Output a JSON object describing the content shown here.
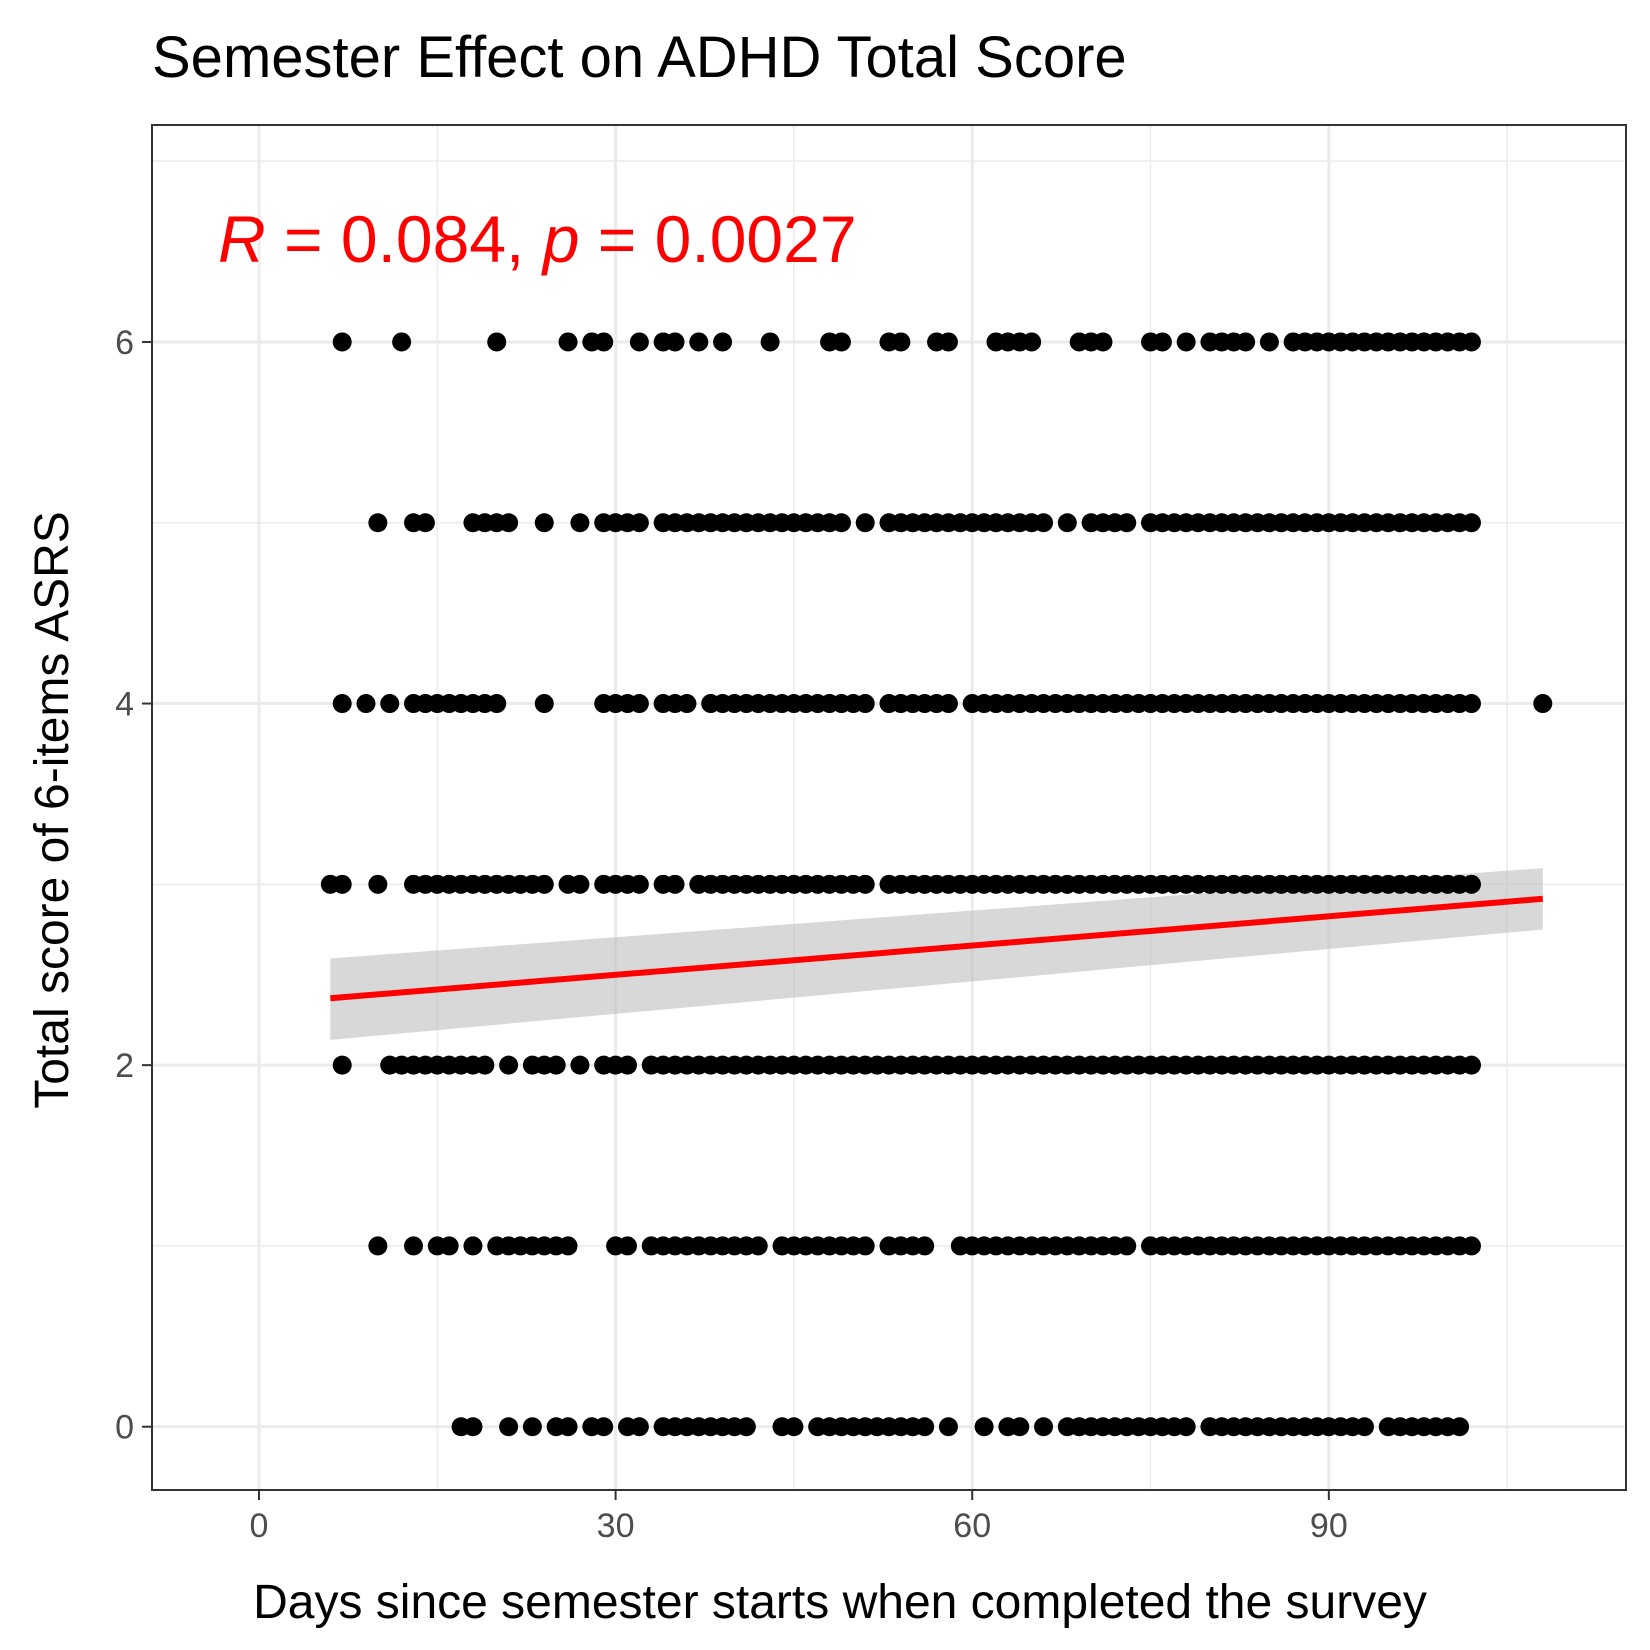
{
  "chart_data": {
    "type": "scatter",
    "title": "Semester Effect on ADHD Total Score",
    "xlabel": "Days since semester starts when completed the survey",
    "ylabel": "Total score of 6-items ASRS",
    "xlim": [
      -9,
      115
    ],
    "ylim": [
      -0.35,
      7.2
    ],
    "x_ticks": [
      0,
      30,
      60,
      90
    ],
    "x_minor_ticks": [
      15,
      45,
      75,
      105
    ],
    "y_ticks": [
      0,
      2,
      4,
      6
    ],
    "y_minor_ticks": [
      1,
      3,
      5,
      7
    ],
    "grid": true,
    "annotation": {
      "r_symbol": "R",
      "r_text": " = 0.084, ",
      "p_symbol": "p",
      "p_text": " = 0.0027",
      "color": "#ff0000"
    },
    "point_color": "#000000",
    "line_color": "#ff0000",
    "band_color": "#bebebe",
    "regression": {
      "x": [
        6,
        108
      ],
      "y": [
        2.37,
        2.92
      ],
      "ci_lower": [
        2.14,
        2.75
      ],
      "ci_upper": [
        2.59,
        3.09
      ]
    },
    "points": [
      {
        "y": 6,
        "x": [
          7,
          12,
          20,
          26,
          28,
          29,
          32,
          34,
          35,
          37,
          39,
          43,
          48,
          49,
          53,
          54,
          57,
          58,
          62,
          63,
          64,
          65,
          69,
          70,
          71,
          75,
          76,
          78,
          80,
          81,
          82,
          83,
          85,
          87,
          88,
          89,
          90,
          91,
          92,
          93,
          94,
          95,
          96,
          97,
          98,
          99,
          100,
          101,
          102
        ]
      },
      {
        "y": 5,
        "x": [
          10,
          13,
          14,
          18,
          19,
          20,
          21,
          24,
          27,
          29,
          30,
          31,
          32,
          34,
          35,
          36,
          37,
          38,
          39,
          40,
          41,
          42,
          43,
          44,
          45,
          46,
          47,
          48,
          49,
          51,
          53,
          54,
          55,
          56,
          57,
          58,
          59,
          60,
          61,
          62,
          63,
          64,
          65,
          66,
          68,
          70,
          71,
          72,
          73,
          75,
          76,
          77,
          78,
          79,
          80,
          81,
          82,
          83,
          84,
          85,
          86,
          87,
          88,
          89,
          90,
          91,
          92,
          93,
          94,
          95,
          96,
          97,
          98,
          99,
          100,
          101,
          102
        ]
      },
      {
        "y": 4,
        "x": [
          7,
          9,
          11,
          13,
          14,
          15,
          16,
          17,
          18,
          19,
          20,
          24,
          29,
          30,
          31,
          32,
          34,
          35,
          36,
          38,
          39,
          40,
          41,
          42,
          43,
          44,
          45,
          46,
          47,
          48,
          49,
          50,
          51,
          53,
          54,
          55,
          56,
          57,
          58,
          60,
          61,
          62,
          63,
          64,
          65,
          66,
          67,
          68,
          69,
          70,
          71,
          72,
          73,
          74,
          75,
          76,
          77,
          78,
          79,
          80,
          81,
          82,
          83,
          84,
          85,
          86,
          87,
          88,
          89,
          90,
          91,
          92,
          93,
          94,
          95,
          96,
          97,
          98,
          99,
          100,
          101,
          102,
          108
        ]
      },
      {
        "y": 3,
        "x": [
          6,
          7,
          10,
          13,
          14,
          15,
          16,
          17,
          18,
          19,
          20,
          21,
          22,
          23,
          24,
          26,
          27,
          29,
          30,
          31,
          32,
          34,
          35,
          37,
          38,
          39,
          40,
          41,
          42,
          43,
          44,
          45,
          46,
          47,
          48,
          49,
          50,
          51,
          53,
          54,
          55,
          56,
          57,
          58,
          59,
          60,
          61,
          62,
          63,
          64,
          65,
          66,
          67,
          68,
          69,
          70,
          71,
          72,
          73,
          74,
          75,
          76,
          77,
          78,
          79,
          80,
          81,
          82,
          83,
          84,
          85,
          86,
          87,
          88,
          89,
          90,
          91,
          92,
          93,
          94,
          95,
          96,
          97,
          98,
          99,
          100,
          101,
          102
        ]
      },
      {
        "y": 2,
        "x": [
          7,
          11,
          12,
          13,
          14,
          15,
          16,
          17,
          18,
          19,
          21,
          23,
          24,
          25,
          27,
          29,
          30,
          31,
          33,
          34,
          35,
          36,
          37,
          38,
          39,
          40,
          41,
          42,
          43,
          44,
          45,
          46,
          47,
          48,
          49,
          50,
          51,
          52,
          53,
          54,
          55,
          56,
          57,
          58,
          59,
          60,
          61,
          62,
          63,
          64,
          65,
          66,
          67,
          68,
          69,
          70,
          71,
          72,
          73,
          74,
          75,
          76,
          77,
          78,
          79,
          80,
          81,
          82,
          83,
          84,
          85,
          86,
          87,
          88,
          89,
          90,
          91,
          92,
          93,
          94,
          95,
          96,
          97,
          98,
          99,
          100,
          101,
          102
        ]
      },
      {
        "y": 1,
        "x": [
          10,
          13,
          15,
          16,
          18,
          20,
          21,
          22,
          23,
          24,
          25,
          26,
          30,
          31,
          33,
          34,
          35,
          36,
          37,
          38,
          39,
          40,
          41,
          42,
          44,
          45,
          46,
          47,
          48,
          49,
          50,
          51,
          53,
          54,
          55,
          56,
          59,
          60,
          61,
          62,
          63,
          64,
          65,
          66,
          67,
          68,
          69,
          70,
          71,
          72,
          73,
          75,
          76,
          77,
          78,
          79,
          80,
          81,
          82,
          83,
          84,
          85,
          86,
          87,
          88,
          89,
          90,
          91,
          92,
          93,
          94,
          95,
          96,
          97,
          98,
          99,
          100,
          101,
          102
        ]
      },
      {
        "y": 0,
        "x": [
          17,
          18,
          21,
          23,
          25,
          26,
          28,
          29,
          31,
          32,
          34,
          35,
          36,
          37,
          38,
          39,
          40,
          41,
          44,
          45,
          47,
          48,
          49,
          50,
          51,
          52,
          53,
          54,
          55,
          56,
          58,
          61,
          63,
          64,
          66,
          68,
          69,
          70,
          71,
          72,
          73,
          74,
          75,
          76,
          77,
          78,
          80,
          81,
          82,
          83,
          84,
          85,
          86,
          87,
          88,
          89,
          90,
          91,
          92,
          93,
          95,
          96,
          97,
          98,
          99,
          100,
          101
        ]
      }
    ]
  }
}
